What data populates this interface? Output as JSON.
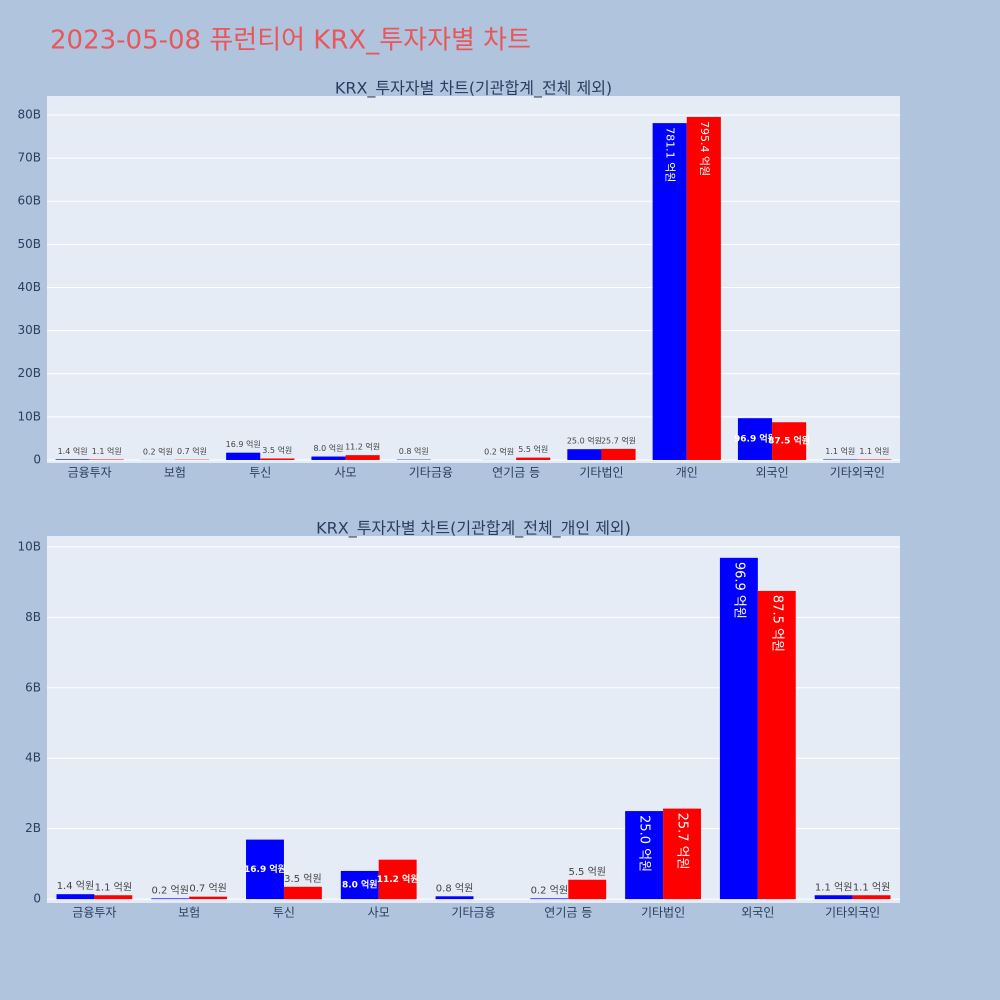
{
  "title": "2023-05-08 퓨런티어 KRX_투자자별 차트",
  "chart_data": [
    {
      "type": "bar",
      "title": "KRX_투자자별 차트(기관합계_전체 제외)",
      "categories": [
        "금융투자",
        "보험",
        "투신",
        "사모",
        "기타금융",
        "연기금 등",
        "기타법인",
        "개인",
        "외국인",
        "기타외국인"
      ],
      "series": [
        {
          "color": "#0000ff",
          "values": [
            140000000,
            20000000,
            1690000000,
            800000000,
            80000000,
            20000000,
            2500000000,
            78110000000,
            9690000000,
            110000000
          ],
          "value_labels": [
            "1.4 억원",
            "0.2 억원",
            "16.9 억원",
            "8.0 억원",
            "0.8 억원",
            "0.2 억원",
            "25.0 억원",
            "781.1 억원",
            "96.9 억원",
            "1.1 억원"
          ]
        },
        {
          "color": "#ff0000",
          "values": [
            110000000,
            70000000,
            350000000,
            1120000000,
            null,
            550000000,
            2570000000,
            79540000000,
            8750000000,
            110000000
          ],
          "value_labels": [
            "1.1 억원",
            "0.7 억원",
            "3.5 억원",
            "11.2 억원",
            null,
            "5.5 억원",
            "25.7 억원",
            "795.4 억원",
            "87.5 억원",
            "1.1 억원"
          ]
        }
      ],
      "ylim": [
        -700000000,
        84400000000
      ],
      "yticks": [
        0,
        {
          "value": 10000000000,
          "label": "10B"
        },
        {
          "value": 20000000000,
          "label": "20B"
        },
        {
          "value": 30000000000,
          "label": "30B"
        },
        {
          "value": 40000000000,
          "label": "40B"
        },
        {
          "value": 50000000000,
          "label": "50B"
        },
        {
          "value": 60000000000,
          "label": "60B"
        },
        {
          "value": 70000000000,
          "label": "70B"
        },
        {
          "value": 80000000000,
          "label": "80B"
        }
      ],
      "grid": true
    },
    {
      "type": "bar",
      "title": "KRX_투자자별 차트(기관합계_전체_개인 제외)",
      "categories": [
        "금융투자",
        "보험",
        "투신",
        "사모",
        "기타금융",
        "연기금 등",
        "기타법인",
        "외국인",
        "기타외국인"
      ],
      "series": [
        {
          "color": "#0000ff",
          "values": [
            140000000,
            20000000,
            1690000000,
            800000000,
            80000000,
            20000000,
            2500000000,
            9690000000,
            110000000
          ],
          "value_labels": [
            "1.4 억원",
            "0.2 억원",
            "16.9 억원",
            "8.0 억원",
            "0.8 억원",
            "0.2 억원",
            "25.0 억원",
            "96.9 억원",
            "1.1 억원"
          ]
        },
        {
          "color": "#ff0000",
          "values": [
            110000000,
            70000000,
            350000000,
            1120000000,
            null,
            550000000,
            2570000000,
            8750000000,
            110000000
          ],
          "value_labels": [
            "1.1 억원",
            "0.7 억원",
            "3.5 억원",
            "11.2 억원",
            null,
            "5.5 억원",
            "25.7 억원",
            "87.5 억원",
            "1.1 억원"
          ]
        }
      ],
      "ylim": [
        -110000000,
        10310000000
      ],
      "yticks": [
        0,
        {
          "value": 2000000000,
          "label": "2B"
        },
        {
          "value": 4000000000,
          "label": "4B"
        },
        {
          "value": 6000000000,
          "label": "6B"
        },
        {
          "value": 8000000000,
          "label": "8B"
        },
        {
          "value": 10000000000,
          "label": "10B"
        }
      ],
      "grid": true
    }
  ]
}
